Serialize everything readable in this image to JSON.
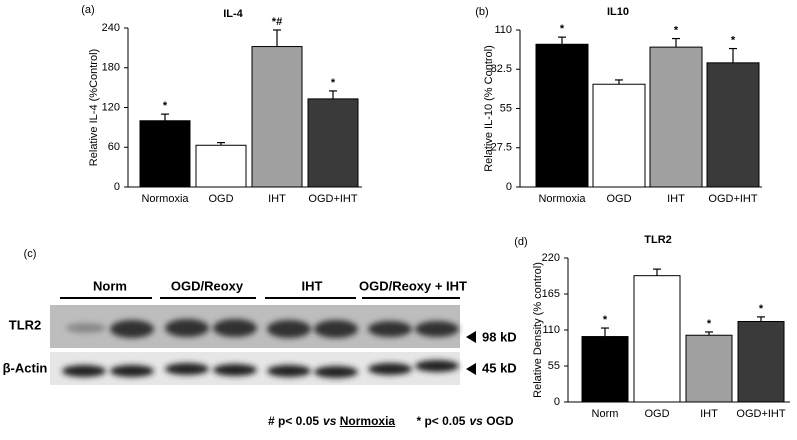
{
  "chart_data": [
    {
      "type": "bar",
      "label": "(a)",
      "title": "IL-4",
      "y_label": "Relative IL-4 (%Control)",
      "categories": [
        "Normoxia",
        "OGD",
        "IHT",
        "OGD+IHT"
      ],
      "values": [
        100,
        63,
        212,
        133
      ],
      "errors": [
        10,
        4,
        25,
        12
      ],
      "significance": [
        "*",
        null,
        "*#",
        "*"
      ],
      "colors": [
        "#000000",
        "#ffffff",
        "#a0a0a0",
        "#3a3a3a"
      ],
      "ylim": [
        0,
        240
      ],
      "yticks": [
        0,
        60,
        120,
        180,
        240
      ]
    },
    {
      "type": "bar",
      "label": "(b)",
      "title": "IL10",
      "y_label": "Relative IL-10 (% Control)",
      "categories": [
        "Normoxia",
        "OGD",
        "IHT",
        "OGD+IHT"
      ],
      "values": [
        100,
        72,
        98,
        87
      ],
      "errors": [
        5,
        3,
        6,
        10
      ],
      "significance": [
        "*",
        null,
        "*",
        "*"
      ],
      "colors": [
        "#000000",
        "#ffffff",
        "#a0a0a0",
        "#3a3a3a"
      ],
      "ylim": [
        0,
        110
      ],
      "yticks": [
        0,
        27.5,
        55,
        82.5,
        110
      ]
    },
    {
      "type": "bar",
      "label": "(d)",
      "title": "TLR2",
      "y_label": "Relative Density (% control)",
      "categories": [
        "Norm",
        "OGD",
        "IHT",
        "OGD+IHT"
      ],
      "values": [
        100,
        193,
        102,
        123
      ],
      "errors": [
        13,
        10,
        5,
        7
      ],
      "significance": [
        "*",
        null,
        "*",
        "*"
      ],
      "colors": [
        "#000000",
        "#ffffff",
        "#a0a0a0",
        "#3a3a3a"
      ],
      "ylim": [
        0,
        220
      ],
      "yticks": [
        0,
        55,
        110,
        165,
        220
      ]
    }
  ],
  "blot": {
    "label": "(c)",
    "groups": [
      "Norm",
      "OGD/Reoxy",
      "IHT",
      "OGD/Reoxy + IHT"
    ],
    "rows": [
      "TLR2",
      "β-Actin"
    ],
    "sizes": [
      "98 kD",
      "45 kD"
    ]
  },
  "footnote": [
    "# p< 0.05",
    "vs",
    "Normoxia",
    "* p< 0.05",
    "vs",
    "OGD"
  ]
}
